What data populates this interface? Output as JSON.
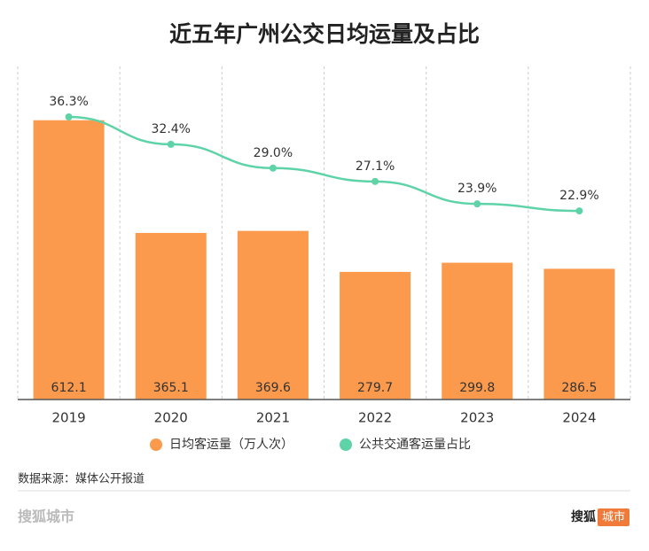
{
  "chart_data": {
    "type": "bar-line",
    "title": "近五年广州公交日均运量及占比",
    "categories": [
      "2019",
      "2020",
      "2021",
      "2022",
      "2023",
      "2024"
    ],
    "series": [
      {
        "name": "日均客运量（万人次）",
        "type": "bar",
        "color": "#fb9a4c",
        "values": [
          612.1,
          365.1,
          369.6,
          279.7,
          299.8,
          286.5
        ]
      },
      {
        "name": "公共交通客运量占比",
        "type": "line",
        "axis": "y2",
        "color": "#5fd3a8",
        "values": [
          36.3,
          32.4,
          29.0,
          27.1,
          23.9,
          22.9
        ],
        "value_labels": [
          "36.3%",
          "32.4%",
          "29.0%",
          "27.1%",
          "23.9%",
          "22.9%"
        ]
      }
    ],
    "ylim": [
      0,
      730
    ],
    "y2lim": [
      -4,
      43.5
    ]
  },
  "source": "数据来源：媒体公开报道",
  "footer": {
    "left": "搜狐城市",
    "brand": "搜狐",
    "badge": "城市"
  }
}
